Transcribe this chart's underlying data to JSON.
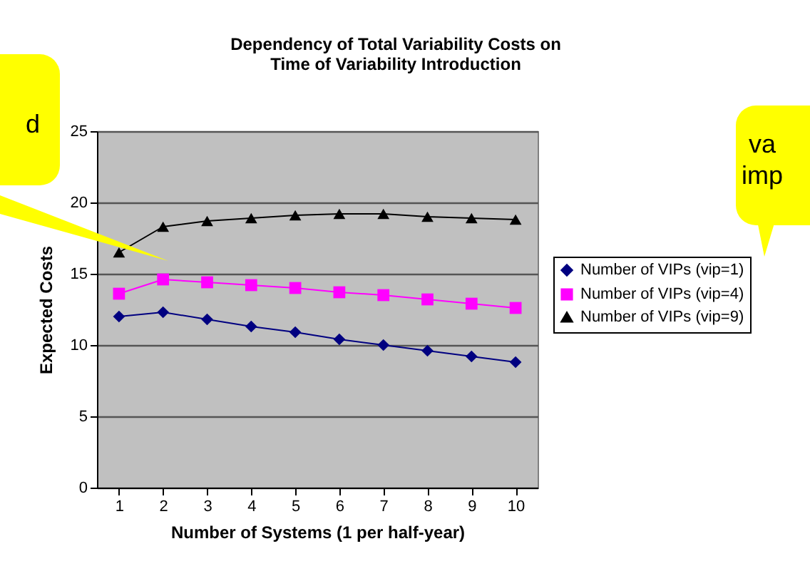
{
  "chart_data": {
    "type": "line",
    "title": "Dependency of Total Variability Costs on\nTime of Variability Introduction",
    "xlabel": "Number of Systems (1 per half-year)",
    "ylabel": "Expected Costs",
    "categories": [
      "1",
      "2",
      "3",
      "4",
      "5",
      "6",
      "7",
      "8",
      "9",
      "10"
    ],
    "series": [
      {
        "name": "Number of VIPs (vip=1)",
        "color": "#000080",
        "marker": "diamond",
        "values": [
          12.0,
          12.3,
          11.8,
          11.3,
          10.9,
          10.4,
          10.0,
          9.6,
          9.2,
          8.8
        ]
      },
      {
        "name": "Number of VIPs (vip=4)",
        "color": "#ff00ff",
        "marker": "square",
        "values": [
          13.6,
          14.6,
          14.4,
          14.2,
          14.0,
          13.7,
          13.5,
          13.2,
          12.9,
          12.6
        ]
      },
      {
        "name": "Number of VIPs (vip=9)",
        "color": "#000000",
        "marker": "triangle",
        "values": [
          16.5,
          18.3,
          18.7,
          18.9,
          19.1,
          19.2,
          19.2,
          19.0,
          18.9,
          18.8
        ]
      }
    ],
    "ylim": [
      0,
      25
    ],
    "yticks": [
      0,
      5,
      10,
      15,
      20,
      25
    ],
    "grid": "y",
    "legend": "right",
    "annotations": [
      "d",
      "va\nimp"
    ]
  }
}
